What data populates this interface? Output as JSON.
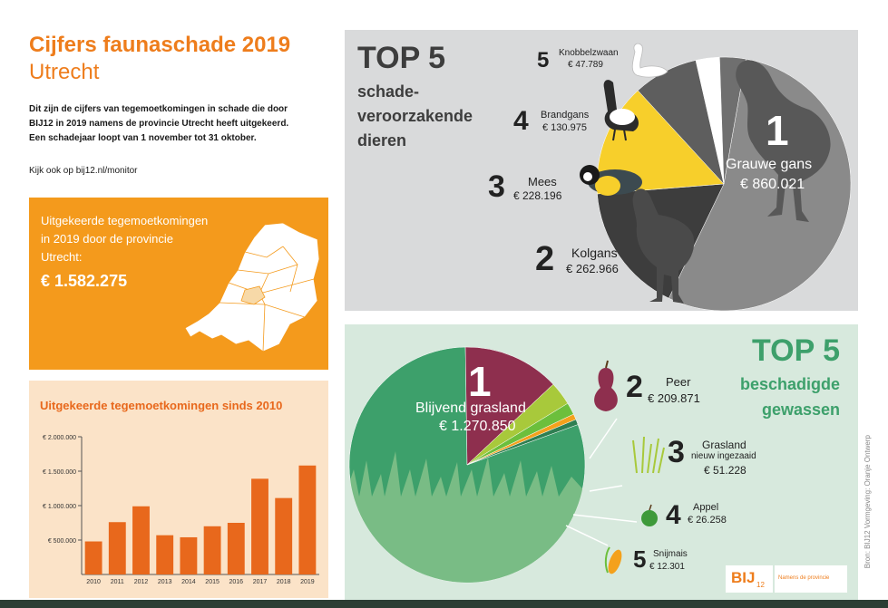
{
  "header": {
    "title_line1": "Cijfers faunaschade 2019",
    "title_line2": "Utrecht",
    "intro_lines": [
      "Dit zijn de cijfers van tegemoetkomingen in schade die door",
      "BIJ12 in 2019 namens de provincie Utrecht heeft uitgekeerd.",
      "Een schadejaar loopt van 1 november tot 31 oktober."
    ],
    "link_text": "Kijk ook op bij12.nl/monitor"
  },
  "summary": {
    "lines": [
      "Uitgekeerde tegemoetkomingen",
      "in 2019 door de provincie",
      "Utrecht:"
    ],
    "total": "€ 1.582.275"
  },
  "colors": {
    "orange": "#f49a1c",
    "bar_orange": "#e8681c",
    "green": "#3da06b",
    "pie_dark": "#3d3d3d",
    "pie_yellow": "#f7cf2b",
    "crop_red": "#8e2f4e",
    "crop_lime": "#a8c93b"
  },
  "chart_data": [
    {
      "type": "bar",
      "title": "Uitgekeerde tegemoetkomingen sinds 2010",
      "categories": [
        "2010",
        "2011",
        "2012",
        "2013",
        "2014",
        "2015",
        "2016",
        "2017",
        "2018",
        "2019"
      ],
      "values": [
        480000,
        760000,
        990000,
        570000,
        540000,
        700000,
        750000,
        1390000,
        1110000,
        1582275
      ],
      "ylim": [
        0,
        2000000
      ],
      "ytick_values": [
        500000,
        1000000,
        1500000,
        2000000
      ],
      "ytick_labels": [
        "€ 500.000",
        "€ 1.000.000",
        "€ 1.500.000",
        "€ 2.000.000"
      ]
    },
    {
      "type": "pie",
      "title": "TOP 5",
      "subtitle_lines": [
        "schade-",
        "veroorzakende",
        "dieren"
      ],
      "slices": [
        {
          "rank": "1",
          "label": "Grauwe gans",
          "value": 860021,
          "value_text": "€ 860.021",
          "color": "#8a8a8a"
        },
        {
          "rank": "2",
          "label": "Kolgans",
          "value": 262966,
          "value_text": "€ 262.966",
          "color": "#3d3d3d"
        },
        {
          "rank": "3",
          "label": "Mees",
          "value": 228196,
          "value_text": "€ 228.196",
          "color": "#f7cf2b"
        },
        {
          "rank": "4",
          "label": "Brandgans",
          "value": 130975,
          "value_text": "€ 130.975",
          "color": "#5e5e5e"
        },
        {
          "rank": "5",
          "label": "Knobbelzwaan",
          "value": 47789,
          "value_text": "€ 47.789",
          "color": "#ffffff"
        },
        {
          "label": "",
          "value": 52328,
          "color": "#6f6f6f"
        }
      ]
    },
    {
      "type": "pie",
      "title": "TOP 5",
      "subtitle_lines": [
        "beschadigde",
        "gewassen"
      ],
      "slices": [
        {
          "rank": "1",
          "label": "Blijvend grasland",
          "value": 1270850,
          "value_text": "€ 1.270.850",
          "color": "#3da06b"
        },
        {
          "rank": "2",
          "label": "Peer",
          "value": 209871,
          "value_text": "€ 209.871",
          "color": "#8e2f4e"
        },
        {
          "rank": "3",
          "label": "Grasland",
          "sublabel": "nieuw ingezaaid",
          "value": 51228,
          "value_text": "€ 51.228",
          "color": "#a8c93b"
        },
        {
          "rank": "4",
          "label": "Appel",
          "value": 26258,
          "value_text": "€ 26.258",
          "color": "#6cbf3c"
        },
        {
          "rank": "5",
          "label": "Snijmais",
          "value": 12301,
          "value_text": "€ 12.301",
          "color": "#f4a11c"
        },
        {
          "label": "",
          "value": 11767,
          "color": "#2f7f52"
        }
      ]
    }
  ],
  "footer": {
    "logo_text": "BIJ",
    "logo_sub": "12",
    "partner_text": "Namens de provincie",
    "side_credit": "Bron: BIJ12   Vormgeving: Oranje Ontwerp"
  }
}
